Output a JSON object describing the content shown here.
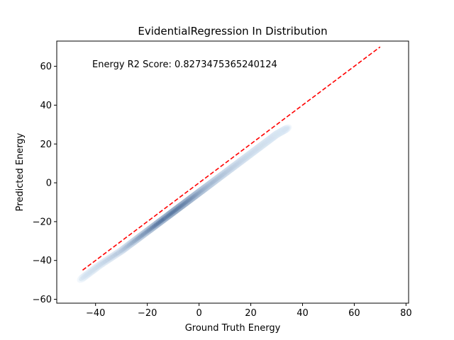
{
  "chart_data": {
    "type": "scatter",
    "title": "EvidentialRegression In Distribution",
    "xlabel": "Ground Truth Energy",
    "ylabel": "Predicted Energy",
    "xlim": [
      -55,
      81
    ],
    "ylim": [
      -62,
      73
    ],
    "xticks": [
      -40,
      -20,
      0,
      20,
      40,
      60,
      80
    ],
    "xtick_labels": [
      "−40",
      "−20",
      "0",
      "20",
      "40",
      "60",
      "80"
    ],
    "yticks": [
      -60,
      -40,
      -20,
      0,
      20,
      40,
      60
    ],
    "ytick_labels": [
      "−60",
      "−40",
      "−20",
      "0",
      "20",
      "40",
      "60"
    ],
    "annotation": "Energy R2 Score: 0.8273475365240124",
    "grid": false,
    "legend": "none",
    "density": {
      "colormap": "Blues",
      "x": [
        -45,
        -38,
        -30,
        -25,
        -20,
        -16,
        -12,
        -9,
        -6,
        -3,
        0,
        3,
        6,
        10,
        14,
        18,
        22,
        26,
        30,
        34
      ],
      "y": [
        -49,
        -42,
        -35,
        -30,
        -25,
        -21,
        -17,
        -14,
        -11,
        -8,
        -5,
        -2,
        1,
        5,
        9,
        13,
        17,
        21,
        25,
        28
      ],
      "intensity": [
        0.05,
        0.12,
        0.25,
        0.45,
        0.65,
        0.85,
        0.95,
        1.0,
        0.95,
        0.85,
        0.7,
        0.55,
        0.42,
        0.32,
        0.24,
        0.18,
        0.13,
        0.1,
        0.07,
        0.04
      ]
    },
    "reference_line": {
      "x": [
        -45,
        70
      ],
      "y": [
        -45,
        70
      ],
      "color": "#ff0000",
      "style": "dashed"
    }
  },
  "colors": {
    "reference_line": "#ff0000",
    "density_dark": "#08306b",
    "density_light": "#deebf7"
  }
}
